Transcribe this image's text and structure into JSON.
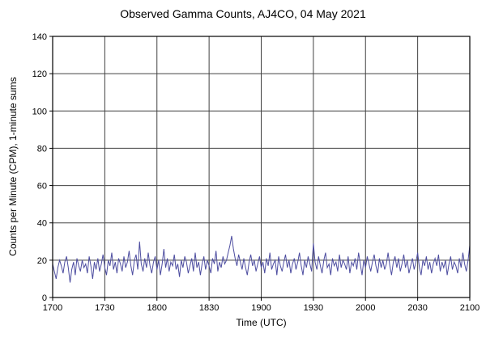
{
  "page": {
    "title": "Observed Gamma Counts, AJ4CO, 04 May 2021"
  },
  "chart_data": {
    "type": "line",
    "title": "Observed Gamma Counts, AJ4CO, 04 May 2021",
    "xlabel": "Time (UTC)",
    "ylabel": "Counts per Minute (CPM), 1-minute sums",
    "x_tick_labels": [
      "1700",
      "1730",
      "1800",
      "1830",
      "1900",
      "1930",
      "2000",
      "2030",
      "2100"
    ],
    "x_tick_minutes": [
      0,
      30,
      60,
      90,
      120,
      150,
      180,
      210,
      240
    ],
    "ylim": [
      0,
      140
    ],
    "y_ticks": [
      0,
      20,
      40,
      60,
      80,
      100,
      120,
      140
    ],
    "grid": true,
    "legend": "none",
    "line_color": "#4d4da0",
    "grid_color": "#404040",
    "border_color": "#000000",
    "values": [
      18,
      14,
      10,
      16,
      20,
      17,
      13,
      19,
      22,
      16,
      8,
      15,
      19,
      12,
      21,
      17,
      14,
      20,
      16,
      18,
      13,
      22,
      17,
      10,
      19,
      15,
      21,
      14,
      18,
      23,
      16,
      12,
      20,
      17,
      24,
      15,
      19,
      13,
      21,
      18,
      14,
      22,
      16,
      19,
      25,
      17,
      12,
      20,
      23,
      15,
      30,
      18,
      14,
      21,
      16,
      24,
      17,
      13,
      19,
      22,
      15,
      20,
      12,
      18,
      26,
      16,
      21,
      14,
      19,
      17,
      23,
      15,
      18,
      11,
      20,
      16,
      22,
      19,
      13,
      17,
      21,
      14,
      24,
      16,
      19,
      12,
      18,
      22,
      15,
      20,
      17,
      13,
      21,
      18,
      25,
      14,
      19,
      16,
      22,
      18,
      20,
      24,
      28,
      33,
      26,
      21,
      17,
      23,
      19,
      15,
      21,
      16,
      12,
      19,
      23,
      17,
      20,
      14,
      18,
      22,
      16,
      19,
      13,
      21,
      17,
      24,
      15,
      18,
      20,
      12,
      22,
      17,
      14,
      19,
      23,
      16,
      20,
      13,
      18,
      21,
      15,
      19,
      24,
      17,
      12,
      20,
      16,
      22,
      18,
      14,
      29,
      19,
      15,
      22,
      17,
      13,
      20,
      24,
      16,
      18,
      12,
      21,
      17,
      19,
      14,
      23,
      16,
      20,
      18,
      15,
      22,
      13,
      19,
      17,
      21,
      15,
      24,
      18,
      12,
      20,
      16,
      22,
      18,
      14,
      19,
      23,
      17,
      13,
      21,
      16,
      20,
      15,
      18,
      24,
      17,
      12,
      19,
      22,
      16,
      21,
      14,
      18,
      23,
      16,
      20,
      13,
      17,
      21,
      15,
      19,
      24,
      16,
      12,
      20,
      17,
      22,
      15,
      19,
      13,
      18,
      21,
      17,
      23,
      14,
      19,
      16,
      20,
      12,
      18,
      22,
      15,
      19,
      17,
      13,
      21,
      16,
      24,
      18,
      14,
      20,
      28
    ]
  }
}
